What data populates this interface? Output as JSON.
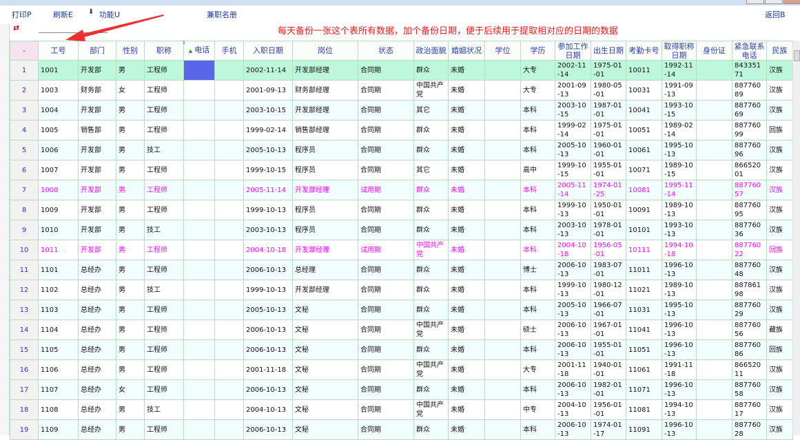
{
  "toolbar": {
    "print": "打印P",
    "refresh": "刷新E",
    "function": "功能U",
    "title": "兼职名册",
    "back": "返回B"
  },
  "annotation": "每天备份一张这个表所有数据，加个备份日期，便于后续用于提取相对应的日期的数据",
  "colors": {
    "header_text": "#2a3cb0",
    "highlight_text": "#ff00ff",
    "selected_row": "#bdf7dc",
    "annotation": "#f01818"
  },
  "columns": [
    "-",
    "工号",
    "部门",
    "性别",
    "职称",
    "电话",
    "手机",
    "入职日期",
    "岗位",
    "状态",
    "政治面貌",
    "婚姻状况",
    "学位",
    "学历",
    "参加工作日期",
    "出生日期",
    "考勤卡号",
    "取得职称日期",
    "身份证",
    "紧急联系电话",
    "民族"
  ],
  "sort_indicator": "1",
  "rows": [
    [
      "1",
      "1001",
      "开发部",
      "男",
      "工程师",
      "",
      "",
      "2002-11-14",
      "开发部经理",
      "合同期",
      "群众",
      "未婚",
      "",
      "大专",
      "2002-11-14",
      "1975-01-01",
      "10011",
      "1992-11-14",
      "",
      "84335171",
      "汉族"
    ],
    [
      "2",
      "1003",
      "财务部",
      "女",
      "工程师",
      "",
      "",
      "2001-09-13",
      "财务部经理",
      "合同期",
      "中国共产党",
      "未婚",
      "",
      "大专",
      "2001-09-13",
      "1980-05-01",
      "10031",
      "1991-09-13",
      "",
      "88776089",
      "汉族"
    ],
    [
      "3",
      "1004",
      "开发部",
      "男",
      "工程师",
      "",
      "",
      "2003-10-15",
      "开发部经理",
      "合同期",
      "其它",
      "未婚",
      "",
      "本科",
      "2003-10-15",
      "1987-01-01",
      "10041",
      "1993-10-15",
      "",
      "88776069",
      "汉族"
    ],
    [
      "4",
      "1005",
      "销售部",
      "男",
      "工程师",
      "",
      "",
      "1999-02-14",
      "销售部经理",
      "合同期",
      "群众",
      "未婚",
      "",
      "本科",
      "1999-02-14",
      "1975-01-01",
      "10051",
      "1989-02-14",
      "",
      "88776099",
      "回族"
    ],
    [
      "5",
      "1006",
      "开发部",
      "男",
      "技工",
      "",
      "",
      "2005-10-13",
      "程序员",
      "合同期",
      "群众",
      "未婚",
      "",
      "本科",
      "2005-10-13",
      "1960-01-01",
      "10061",
      "1995-10-13",
      "",
      "88776096",
      "汉族"
    ],
    [
      "6",
      "1007",
      "开发部",
      "男",
      "工程师",
      "",
      "",
      "1999-10-15",
      "程序员",
      "合同期",
      "其它",
      "未婚",
      "",
      "高中",
      "1999-10-15",
      "1955-01-01",
      "10071",
      "1989-10-15",
      "",
      "86652001",
      "汉族"
    ],
    [
      "7",
      "1008",
      "开发部",
      "男",
      "工程师",
      "",
      "",
      "2005-11-14",
      "开发部经理",
      "试用期",
      "群众",
      "未婚",
      "",
      "本科",
      "2005-11-14",
      "1974-01-25",
      "10081",
      "1995-11-14",
      "",
      "88776057",
      "汉族"
    ],
    [
      "8",
      "1009",
      "开发部",
      "男",
      "工程师",
      "",
      "",
      "1999-10-13",
      "程序员",
      "合同期",
      "群众",
      "未婚",
      "",
      "本科",
      "1999-10-13",
      "1950-01-01",
      "10091",
      "1989-10-13",
      "",
      "88776095",
      "汉族"
    ],
    [
      "9",
      "1010",
      "开发部",
      "男",
      "技工",
      "",
      "",
      "2003-10-13",
      "程序员",
      "合同期",
      "群众",
      "未婚",
      "",
      "本科",
      "2003-10-13",
      "1978-01-01",
      "10101",
      "1993-10-13",
      "",
      "88776036",
      "汉族"
    ],
    [
      "10",
      "1011",
      "开发部",
      "男",
      "工程师",
      "",
      "",
      "2004-10-18",
      "开发部经理",
      "试用期",
      "中国共产党",
      "未婚",
      "",
      "本科",
      "2004-10-18",
      "1956-05-01",
      "10111",
      "1994-10-18",
      "",
      "88776022",
      "回族"
    ],
    [
      "11",
      "1101",
      "总经办",
      "男",
      "工程师",
      "",
      "",
      "2006-10-13",
      "总经理",
      "合同期",
      "群众",
      "未婚",
      "",
      "博士",
      "2006-10-13",
      "1983-07-01",
      "11011",
      "1996-10-13",
      "",
      "88776048",
      "汉族"
    ],
    [
      "12",
      "1102",
      "总经办",
      "男",
      "技工",
      "",
      "",
      "1999-10-13",
      "开发部经理",
      "合同期",
      "群众",
      "未婚",
      "",
      "本科",
      "1999-10-13",
      "1980-12-01",
      "11021",
      "1989-10-13",
      "",
      "88786198",
      "汉族"
    ],
    [
      "13",
      "1103",
      "总经办",
      "男",
      "工程师",
      "",
      "",
      "2005-10-13",
      "文秘",
      "合同期",
      "群众",
      "未婚",
      "",
      "本科",
      "2005-10-13",
      "1966-07-01",
      "11031",
      "1995-10-13",
      "",
      "88776029",
      "汉族"
    ],
    [
      "14",
      "1104",
      "总经办",
      "男",
      "工程师",
      "",
      "",
      "2006-10-13",
      "文秘",
      "合同期",
      "中国共产党",
      "未婚",
      "",
      "硕士",
      "2006-10-13",
      "1967-01-01",
      "11041",
      "1996-10-13",
      "",
      "88776056",
      "藏族"
    ],
    [
      "15",
      "1105",
      "总经办",
      "男",
      "工程师",
      "",
      "",
      "2006-10-13",
      "文秘",
      "合同期",
      "群众",
      "未婚",
      "",
      "本科",
      "2006-10-13",
      "1955-01-01",
      "11051",
      "1996-10-13",
      "",
      "88776086",
      "回族"
    ],
    [
      "16",
      "1106",
      "总经办",
      "男",
      "工程师",
      "",
      "",
      "2001-11-18",
      "文秘",
      "合同期",
      "中国共产党",
      "未婚",
      "",
      "大专",
      "2001-11-18",
      "1940-01-01",
      "11061",
      "1991-11-18",
      "",
      "86652011",
      "汉族"
    ],
    [
      "17",
      "1107",
      "总经办",
      "女",
      "工程师",
      "",
      "",
      "2006-10-13",
      "文秘",
      "合同期",
      "群众",
      "未婚",
      "",
      "本科",
      "2006-10-13",
      "1982-01-01",
      "11071",
      "1996-10-13",
      "",
      "88776058",
      "汉族"
    ],
    [
      "18",
      "1108",
      "总经办",
      "男",
      "技工",
      "",
      "",
      "2004-10-13",
      "文秘",
      "合同期",
      "中国共产党",
      "未婚",
      "",
      "中专",
      "2004-10-13",
      "1956-01-01",
      "11081",
      "1994-10-13",
      "",
      "88776017",
      "汉族"
    ],
    [
      "19",
      "1109",
      "总经办",
      "男",
      "工程师",
      "",
      "",
      "2006-10-13",
      "文秘",
      "合同期",
      "群众",
      "未婚",
      "",
      "本科",
      "2006-10-13",
      "1974-01-17",
      "11091",
      "1996-10-13",
      "",
      "88776028",
      "汉族"
    ]
  ],
  "highlighted_rows": [
    "7",
    "10"
  ],
  "selected_row": "1"
}
